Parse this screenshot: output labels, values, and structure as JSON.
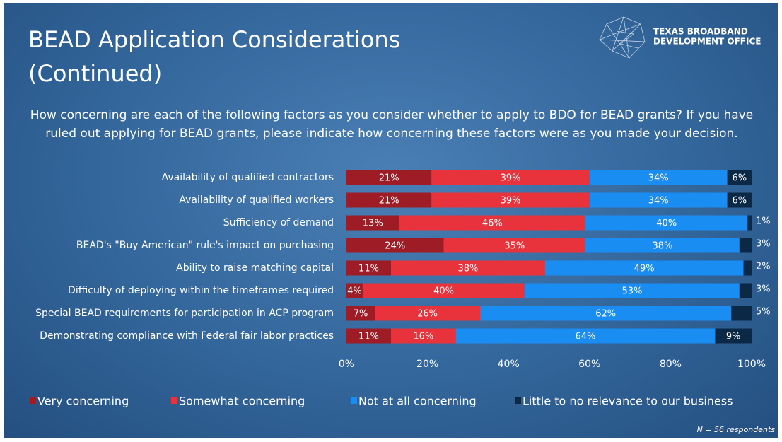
{
  "chart_data": {
    "type": "stacked_bar_horizontal",
    "title": "BEAD Application Considerations (Continued)",
    "subtitle": "How concerning are each of the following factors as you consider whether to apply to BDO for BEAD grants? If you have ruled out applying for BEAD grants, please indicate how concerning these factors were as you made your decision.",
    "logo_text": [
      "TEXAS BROADBAND",
      "DEVELOPMENT OFFICE"
    ],
    "note": "N = 56 respondents",
    "categories": [
      "Availability of qualified contractors",
      "Availability of qualified workers",
      "Sufficiency of demand",
      "BEAD's \"Buy American\" rule's impact on purchasing",
      "Ability to raise matching capital",
      "Difficulty of deploying within the timeframes required",
      "Special BEAD requirements for participation in ACP program",
      "Demonstrating compliance with Federal fair labor practices"
    ],
    "series": [
      {
        "name": "Very concerning",
        "color": "#9e1c26",
        "values": [
          21,
          21,
          13,
          24,
          11,
          4,
          7,
          11
        ],
        "value_labels": [
          "21%",
          "21%",
          "13%",
          "24%",
          "11%",
          "4%",
          "7%",
          "11%"
        ]
      },
      {
        "name": "Somewhat concerning",
        "color": "#e8333c",
        "values": [
          39,
          39,
          46,
          35,
          38,
          40,
          26,
          16
        ],
        "value_labels": [
          "39%",
          "39%",
          "46%",
          "35%",
          "38%",
          "40%",
          "26%",
          "16%"
        ]
      },
      {
        "name": "Not at all concerning",
        "color": "#1a8df2",
        "values": [
          34,
          34,
          40,
          38,
          49,
          53,
          62,
          64
        ],
        "value_labels": [
          "34%",
          "34%",
          "40%",
          "38%",
          "49%",
          "53%",
          "62%",
          "64%"
        ]
      },
      {
        "name": "Little to no relevance to our business",
        "color": "#0c2847",
        "values": [
          6,
          6,
          1,
          3,
          2,
          3,
          5,
          9
        ],
        "value_labels": [
          "6%",
          "6%",
          "1%",
          "3%",
          "2%",
          "3%",
          "5%",
          "9%"
        ]
      }
    ],
    "xlim": [
      0,
      100
    ],
    "xticks": [
      {
        "value": 0,
        "label": "0%"
      },
      {
        "value": 20,
        "label": "20%"
      },
      {
        "value": 40,
        "label": "40%"
      },
      {
        "value": 60,
        "label": "60%"
      },
      {
        "value": 80,
        "label": "80%"
      },
      {
        "value": 100,
        "label": "100%"
      }
    ],
    "legend": "bottom"
  }
}
